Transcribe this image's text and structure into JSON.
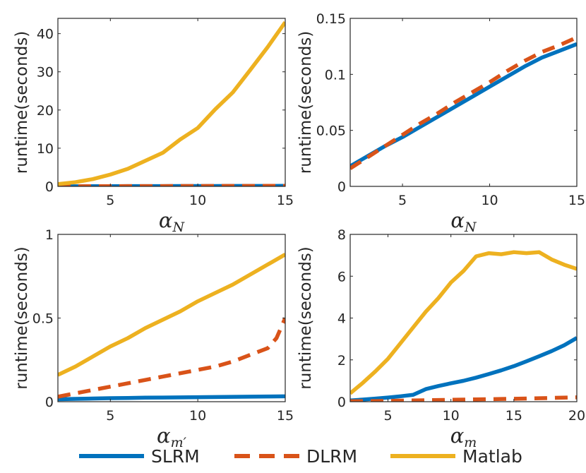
{
  "chart_data": [
    {
      "type": "line",
      "ylabel": "runtime(seconds)",
      "xlabel": {
        "base": "α",
        "sub": "N"
      },
      "xlim": [
        2,
        15
      ],
      "ylim": [
        0,
        44
      ],
      "xticks": [
        5,
        10,
        15
      ],
      "xtick_labels": [
        "5",
        "10",
        "15"
      ],
      "yticks": [
        0,
        10,
        20,
        30,
        40
      ],
      "ytick_labels": [
        "0",
        "10",
        "20",
        "30",
        "40"
      ],
      "series": [
        {
          "name": "SLRM",
          "x": [
            2,
            3,
            4,
            5,
            6,
            7,
            8,
            9,
            10,
            11,
            12,
            13,
            14,
            15
          ],
          "y": [
            0.02,
            0.03,
            0.04,
            0.05,
            0.06,
            0.07,
            0.08,
            0.09,
            0.1,
            0.1,
            0.11,
            0.12,
            0.12,
            0.13
          ]
        },
        {
          "name": "DLRM",
          "x": [
            2,
            3,
            4,
            5,
            6,
            7,
            8,
            9,
            10,
            11,
            12,
            13,
            14,
            15
          ],
          "y": [
            0.02,
            0.03,
            0.04,
            0.05,
            0.06,
            0.07,
            0.08,
            0.09,
            0.1,
            0.11,
            0.12,
            0.12,
            0.13,
            0.13
          ]
        },
        {
          "name": "Matlab",
          "x": [
            2,
            3,
            4,
            5,
            6,
            7,
            8,
            9,
            10,
            11,
            12,
            13,
            14,
            15
          ],
          "y": [
            0.6,
            1.1,
            1.9,
            3.1,
            4.6,
            6.7,
            8.8,
            12.3,
            15.3,
            20.2,
            24.6,
            30.5,
            36.5,
            43.0
          ]
        }
      ]
    },
    {
      "type": "line",
      "ylabel": "runtime(seconds)",
      "xlabel": {
        "base": "α",
        "sub": "N"
      },
      "xlim": [
        2,
        15
      ],
      "ylim": [
        0,
        0.15
      ],
      "xticks": [
        5,
        10,
        15
      ],
      "xtick_labels": [
        "5",
        "10",
        "15"
      ],
      "yticks": [
        0,
        0.05,
        0.1,
        0.15
      ],
      "ytick_labels": [
        "0",
        "0.05",
        "0.1",
        "0.15"
      ],
      "series": [
        {
          "name": "SLRM",
          "x": [
            2,
            3,
            4,
            5,
            6,
            7,
            8,
            9,
            10,
            11,
            12,
            13,
            14,
            15
          ],
          "y": [
            0.018,
            0.027,
            0.036,
            0.044,
            0.053,
            0.062,
            0.071,
            0.08,
            0.089,
            0.098,
            0.107,
            0.115,
            0.121,
            0.127
          ]
        },
        {
          "name": "DLRM",
          "x": [
            2,
            3,
            4,
            5,
            6,
            7,
            8,
            9,
            10,
            11,
            12,
            13,
            14,
            15
          ],
          "y": [
            0.016,
            0.026,
            0.036,
            0.046,
            0.056,
            0.065,
            0.075,
            0.084,
            0.093,
            0.103,
            0.112,
            0.12,
            0.126,
            0.133
          ]
        }
      ]
    },
    {
      "type": "line",
      "ylabel": "runtime(seconds)",
      "xlabel": {
        "base": "α",
        "sub": "m′"
      },
      "xlim": [
        2,
        15
      ],
      "ylim": [
        0,
        1
      ],
      "xticks": [
        5,
        10,
        15
      ],
      "xtick_labels": [
        "5",
        "10",
        "15"
      ],
      "yticks": [
        0,
        0.5,
        1
      ],
      "ytick_labels": [
        "0",
        "0.5",
        "1"
      ],
      "series": [
        {
          "name": "SLRM",
          "x": [
            2,
            3,
            4,
            5,
            6,
            7,
            8,
            9,
            10,
            11,
            12,
            13,
            14,
            15
          ],
          "y": [
            0.015,
            0.017,
            0.019,
            0.021,
            0.022,
            0.024,
            0.025,
            0.026,
            0.027,
            0.028,
            0.029,
            0.03,
            0.031,
            0.032
          ]
        },
        {
          "name": "DLRM",
          "x": [
            2,
            3,
            4,
            5,
            6,
            7,
            8,
            9,
            10,
            11,
            12,
            13,
            14,
            14.5,
            15
          ],
          "y": [
            0.03,
            0.05,
            0.07,
            0.09,
            0.11,
            0.13,
            0.15,
            0.17,
            0.19,
            0.21,
            0.24,
            0.28,
            0.32,
            0.38,
            0.5
          ]
        },
        {
          "name": "Matlab",
          "x": [
            2,
            3,
            4,
            5,
            6,
            7,
            8,
            9,
            10,
            11,
            12,
            13,
            14,
            15
          ],
          "y": [
            0.16,
            0.21,
            0.27,
            0.33,
            0.38,
            0.44,
            0.49,
            0.54,
            0.6,
            0.65,
            0.7,
            0.76,
            0.82,
            0.88
          ]
        }
      ]
    },
    {
      "type": "line",
      "ylabel": "runtime(seconds)",
      "xlabel": {
        "base": "α",
        "sub": "m"
      },
      "xlim": [
        2,
        20
      ],
      "ylim": [
        0,
        8
      ],
      "xticks": [
        5,
        10,
        15,
        20
      ],
      "xtick_labels": [
        "5",
        "10",
        "15",
        "20"
      ],
      "yticks": [
        0,
        2,
        4,
        6,
        8
      ],
      "ytick_labels": [
        "0",
        "2",
        "4",
        "6",
        "8"
      ],
      "series": [
        {
          "name": "SLRM",
          "x": [
            2,
            3,
            4,
            5,
            6,
            7,
            8,
            9,
            10,
            11,
            12,
            13,
            14,
            15,
            16,
            17,
            18,
            19,
            20
          ],
          "y": [
            0.06,
            0.1,
            0.15,
            0.2,
            0.26,
            0.33,
            0.6,
            0.75,
            0.88,
            1.0,
            1.15,
            1.32,
            1.5,
            1.7,
            1.93,
            2.17,
            2.42,
            2.7,
            3.05
          ]
        },
        {
          "name": "DLRM",
          "x": [
            2,
            4,
            6,
            8,
            10,
            12,
            14,
            16,
            18,
            20
          ],
          "y": [
            0.02,
            0.03,
            0.05,
            0.07,
            0.09,
            0.11,
            0.13,
            0.15,
            0.18,
            0.21
          ]
        },
        {
          "name": "Matlab",
          "x": [
            2,
            3,
            4,
            5,
            6,
            7,
            8,
            9,
            10,
            11,
            12,
            13,
            14,
            15,
            16,
            17,
            18,
            19,
            20
          ],
          "y": [
            0.4,
            0.9,
            1.45,
            2.05,
            2.8,
            3.55,
            4.3,
            4.95,
            5.7,
            6.25,
            6.95,
            7.1,
            7.05,
            7.15,
            7.1,
            7.15,
            6.8,
            6.55,
            6.35
          ]
        }
      ]
    }
  ],
  "legend": [
    {
      "name": "SLRM",
      "color": "#0072BD",
      "dash": "solid"
    },
    {
      "name": "DLRM",
      "color": "#D95319",
      "dash": "dashed"
    },
    {
      "name": "Matlab",
      "color": "#EDB120",
      "dash": "solid"
    }
  ]
}
